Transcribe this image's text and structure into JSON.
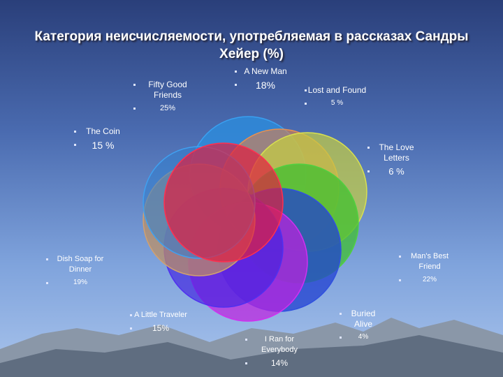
{
  "title": "Категория неисчисляемости, употребляемая в рассказах Сандры Хейер (%)",
  "nodes": [
    {
      "label": "A New Man",
      "value": "18%"
    },
    {
      "label": "Lost and Found",
      "value": "5 %"
    },
    {
      "label": "The Love Letters",
      "value": "6 %"
    },
    {
      "label": "Man's Best Friend",
      "value": "22%"
    },
    {
      "label": "Buried Alive",
      "value": "4%"
    },
    {
      "label": "I Ran for Everybody",
      "value": "14%"
    },
    {
      "label": "A Little Traveler",
      "value": "15%"
    },
    {
      "label": "Dish Soap for Dinner",
      "value": "19%"
    },
    {
      "label": "The Coin",
      "value": "15 %"
    },
    {
      "label": "Fifty Good Friends",
      "value": "25%"
    }
  ]
}
